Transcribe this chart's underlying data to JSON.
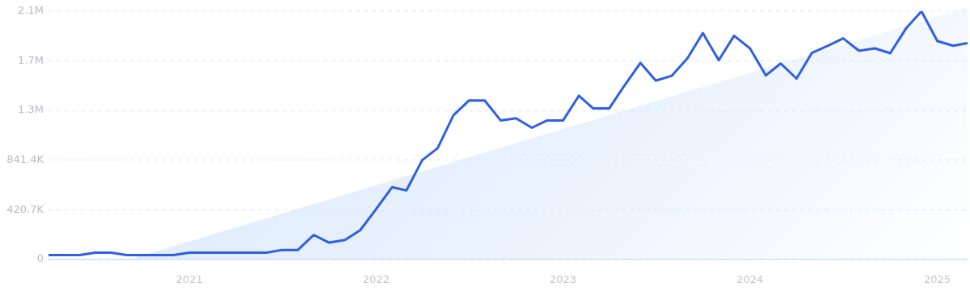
{
  "chart_data": {
    "type": "line",
    "x": [
      "2020-04",
      "2020-05",
      "2020-06",
      "2020-07",
      "2020-08",
      "2020-09",
      "2020-10",
      "2020-11",
      "2020-12",
      "2021-01",
      "2021-02",
      "2021-03",
      "2021-04",
      "2021-05",
      "2021-06",
      "2021-07",
      "2021-08",
      "2021-09",
      "2021-10",
      "2021-11",
      "2021-12",
      "2022-01",
      "2022-02",
      "2022-03",
      "2022-04",
      "2022-05",
      "2022-06",
      "2022-07",
      "2022-08",
      "2022-09",
      "2022-10",
      "2022-11",
      "2022-12",
      "2023-01",
      "2023-02",
      "2023-03",
      "2023-04",
      "2023-05",
      "2023-06",
      "2023-07",
      "2023-08",
      "2023-09",
      "2023-10",
      "2023-11",
      "2023-12",
      "2024-01",
      "2024-02",
      "2024-03",
      "2024-04",
      "2024-05",
      "2024-06",
      "2024-07",
      "2024-08",
      "2024-09",
      "2024-10",
      "2024-11",
      "2024-12",
      "2025-01",
      "2025-02",
      "2025-03"
    ],
    "series": [
      {
        "color": "#2f5fe3",
        "values": [
          38000,
          38000,
          38000,
          58000,
          58000,
          38000,
          38000,
          38000,
          38000,
          58000,
          58000,
          58000,
          58000,
          58000,
          58000,
          81000,
          81000,
          208000,
          143000,
          166000,
          249000,
          428000,
          612000,
          585000,
          842000,
          943000,
          1223000,
          1346000,
          1346000,
          1178000,
          1196000,
          1116000,
          1178000,
          1178000,
          1387000,
          1279000,
          1279000,
          1474000,
          1665000,
          1515000,
          1555000,
          1705000,
          1918000,
          1687000,
          1895000,
          1788000,
          1559000,
          1660000,
          1532000,
          1750000,
          1810000,
          1873000,
          1768000,
          1788000,
          1747000,
          1958000,
          2102000,
          1850000,
          1810000,
          1833000
        ]
      }
    ],
    "xlim": [
      "2020-04",
      "2025-03"
    ],
    "xticks": [
      "2021",
      "2022",
      "2023",
      "2024",
      "2025"
    ],
    "ylim": [
      0,
      2103500
    ],
    "yticks": [
      0,
      {
        "value": 420700,
        "label": "420.7K"
      },
      {
        "value": 841400,
        "label": "841.4K"
      },
      {
        "value": 1262100,
        "label": "1.3M"
      },
      {
        "value": 1682800,
        "label": "1.7M"
      },
      {
        "value": 2103500,
        "label": "2.1M"
      }
    ],
    "grid": "y",
    "legend": false,
    "marker": "none",
    "line_style": "solid"
  }
}
